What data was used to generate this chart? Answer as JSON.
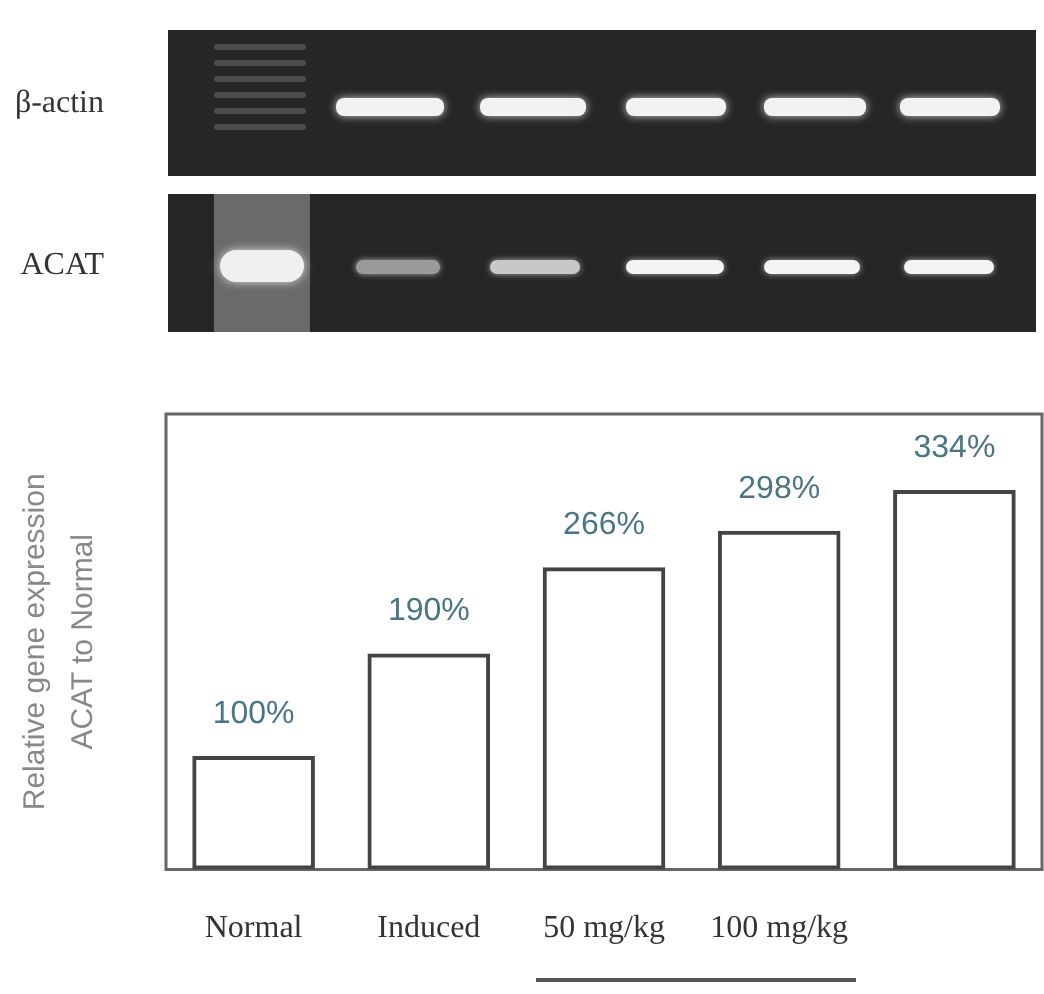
{
  "chart_data": {
    "type": "bar",
    "categories": [
      "Normal",
      "Induced",
      "50 mg/kg",
      "100 mg/kg",
      null
    ],
    "values": [
      100,
      190,
      266,
      298,
      334
    ],
    "color": "#444444",
    "value_labels": [
      "100%",
      "190%",
      "266%",
      "298%",
      "334%"
    ],
    "ylabel": "Relative gene expression\nACAT to Normal",
    "tick_labels": "x",
    "annotations": [
      "β-actin",
      "ACAT"
    ]
  }
}
